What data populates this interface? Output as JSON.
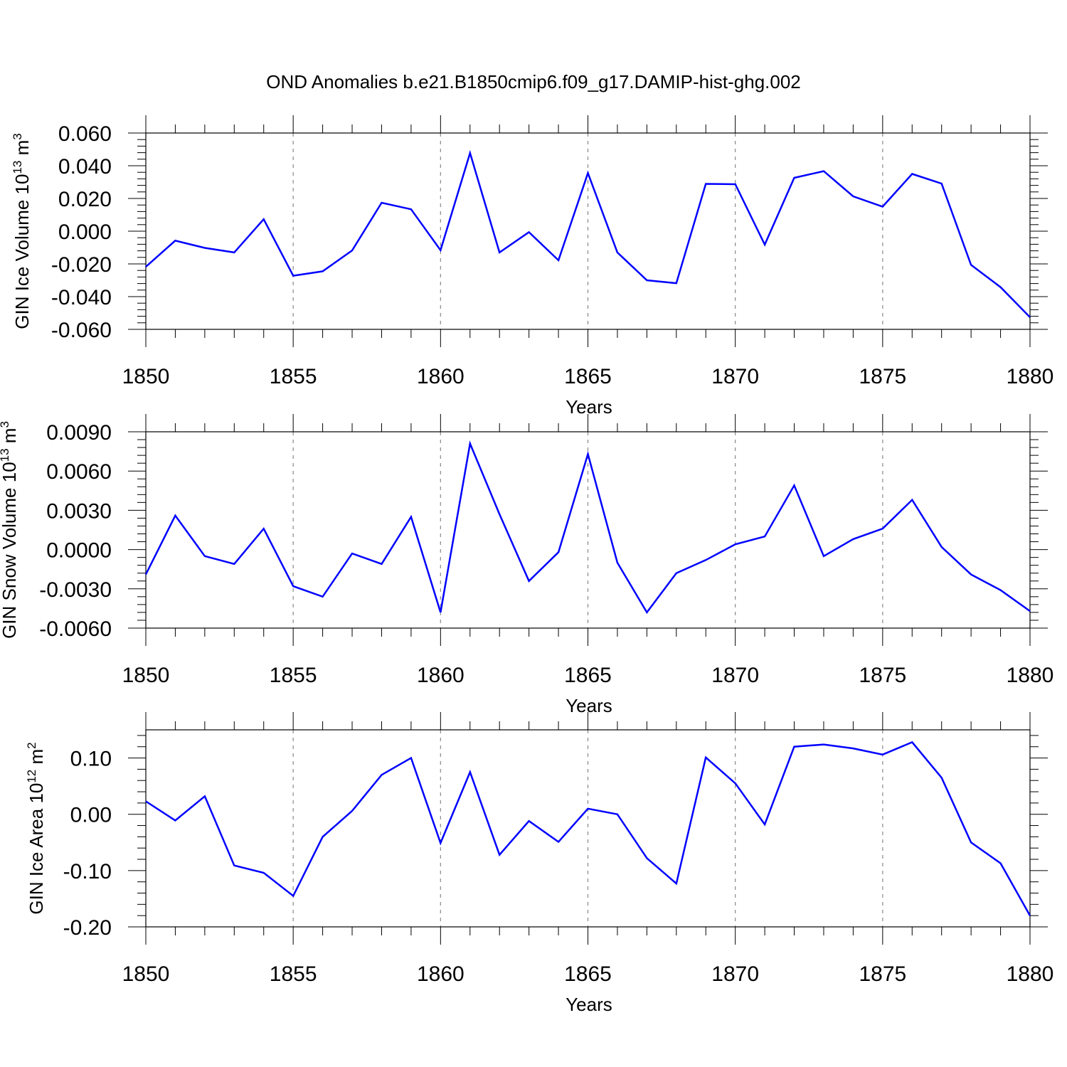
{
  "title": "OND Anomalies b.e21.B1850cmip6.f09_g17.DAMIP-hist-ghg.002",
  "series_color": "#0000ff",
  "chart_data": [
    {
      "type": "line",
      "name": "ice-volume",
      "ylabel_main": "GIN Ice Volume 10",
      "ylabel_exp": "13",
      "ylabel_unit": "m",
      "ylabel_unit_exp": "3",
      "xlabel": "Years",
      "xlim": [
        1850,
        1880
      ],
      "ylim": [
        -0.06,
        0.06
      ],
      "ytick_values": [
        -0.06,
        -0.04,
        -0.02,
        0.0,
        0.02,
        0.04,
        0.06
      ],
      "ytick_labels": [
        "-0.060",
        "-0.040",
        "-0.020",
        "0.000",
        "0.020",
        "0.040",
        "0.060"
      ],
      "xtick_values": [
        1850,
        1855,
        1860,
        1865,
        1870,
        1875,
        1880
      ],
      "xtick_labels": [
        "1850",
        "1855",
        "1860",
        "1865",
        "1870",
        "1875",
        "1880"
      ],
      "grid": "dashed vertical at major x ticks",
      "x": [
        1850,
        1851,
        1852,
        1853,
        1854,
        1855,
        1856,
        1857,
        1858,
        1859,
        1860,
        1861,
        1862,
        1863,
        1864,
        1865,
        1866,
        1867,
        1868,
        1869,
        1870,
        1871,
        1872,
        1873,
        1874,
        1875,
        1876,
        1877,
        1878,
        1879,
        1880
      ],
      "y": [
        -0.0218,
        -0.0058,
        -0.0102,
        -0.013,
        0.0073,
        -0.0272,
        -0.0245,
        -0.0118,
        0.0174,
        0.0134,
        -0.0116,
        0.0478,
        -0.013,
        -0.0006,
        -0.0178,
        0.0355,
        -0.013,
        -0.03,
        -0.0318,
        0.0289,
        0.0287,
        -0.0082,
        0.0326,
        0.0367,
        0.0213,
        0.015,
        0.035,
        0.0291,
        -0.0206,
        -0.0342,
        -0.0526
      ]
    },
    {
      "type": "line",
      "name": "snow-volume",
      "ylabel_main": "GIN Snow Volume 10",
      "ylabel_exp": "13",
      "ylabel_unit": "m",
      "ylabel_unit_exp": "3",
      "xlabel": "Years",
      "xlim": [
        1850,
        1880
      ],
      "ylim": [
        -0.006,
        0.009
      ],
      "ytick_values": [
        -0.006,
        -0.003,
        0.0,
        0.003,
        0.006,
        0.009
      ],
      "ytick_labels": [
        "-0.0060",
        "-0.0030",
        "0.0000",
        "0.0030",
        "0.0060",
        "0.0090"
      ],
      "xtick_values": [
        1850,
        1855,
        1860,
        1865,
        1870,
        1875,
        1880
      ],
      "xtick_labels": [
        "1850",
        "1855",
        "1860",
        "1865",
        "1870",
        "1875",
        "1880"
      ],
      "grid": "dashed vertical at major x ticks",
      "x": [
        1850,
        1851,
        1852,
        1853,
        1854,
        1855,
        1856,
        1857,
        1858,
        1859,
        1860,
        1861,
        1862,
        1863,
        1864,
        1865,
        1866,
        1867,
        1868,
        1869,
        1870,
        1871,
        1872,
        1873,
        1874,
        1875,
        1876,
        1877,
        1878,
        1879,
        1880
      ],
      "y": [
        -0.0019,
        0.0026,
        -0.0005,
        -0.0011,
        0.0016,
        -0.0028,
        -0.0036,
        -0.0003,
        -0.0011,
        0.0025,
        -0.0048,
        0.0081,
        0.0027,
        -0.0024,
        -0.0002,
        0.0073,
        -0.001,
        -0.0048,
        -0.0018,
        -0.0008,
        0.0004,
        0.001,
        0.0049,
        -0.0005,
        0.0008,
        0.0016,
        0.0038,
        0.0002,
        -0.0019,
        -0.0031,
        -0.0047
      ]
    },
    {
      "type": "line",
      "name": "ice-area",
      "ylabel_main": "GIN Ice Area 10",
      "ylabel_exp": "12",
      "ylabel_unit": "m",
      "ylabel_unit_exp": "2",
      "xlabel": "Years",
      "xlim": [
        1850,
        1880
      ],
      "ylim": [
        -0.2,
        0.15
      ],
      "ytick_values": [
        -0.2,
        -0.1,
        0.0,
        0.1
      ],
      "ytick_labels": [
        "-0.20",
        "-0.10",
        "0.00",
        "0.10"
      ],
      "xtick_values": [
        1850,
        1855,
        1860,
        1865,
        1870,
        1875,
        1880
      ],
      "xtick_labels": [
        "1850",
        "1855",
        "1860",
        "1865",
        "1870",
        "1875",
        "1880"
      ],
      "grid": "dashed vertical at major x ticks",
      "x": [
        1850,
        1851,
        1852,
        1853,
        1854,
        1855,
        1856,
        1857,
        1858,
        1859,
        1860,
        1861,
        1862,
        1863,
        1864,
        1865,
        1866,
        1867,
        1868,
        1869,
        1870,
        1871,
        1872,
        1873,
        1874,
        1875,
        1876,
        1877,
        1878,
        1879,
        1880
      ],
      "y": [
        0.023,
        -0.011,
        0.032,
        -0.091,
        -0.104,
        -0.145,
        -0.04,
        0.006,
        0.07,
        0.1,
        -0.051,
        0.075,
        -0.072,
        -0.012,
        -0.049,
        0.01,
        0.0,
        -0.078,
        -0.123,
        0.101,
        0.055,
        -0.018,
        0.12,
        0.124,
        0.117,
        0.106,
        0.128,
        0.065,
        -0.05,
        -0.087,
        -0.18
      ]
    }
  ]
}
